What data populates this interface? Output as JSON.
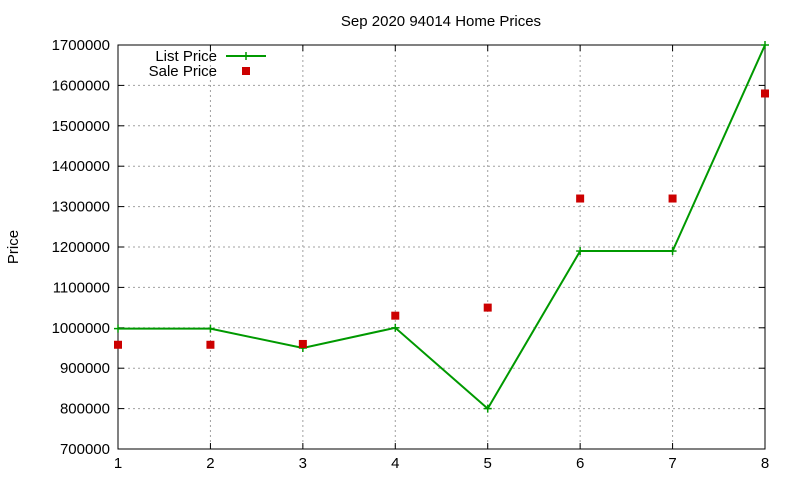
{
  "chart_data": {
    "type": "line",
    "title": "Sep 2020 94014 Home Prices",
    "xlabel": "",
    "ylabel": "Price",
    "x": [
      1,
      2,
      3,
      4,
      5,
      6,
      7,
      8
    ],
    "xlim": [
      1,
      8
    ],
    "ylim": [
      700000,
      1700000
    ],
    "xticks": [
      "1",
      "2",
      "3",
      "4",
      "5",
      "6",
      "7",
      "8"
    ],
    "yticks": [
      "700000",
      "800000",
      "900000",
      "1000000",
      "1100000",
      "1200000",
      "1300000",
      "1400000",
      "1500000",
      "1600000",
      "1700000"
    ],
    "grid": true,
    "legend_position": "top-left",
    "series": [
      {
        "name": "List Price",
        "style": "line-with-plus-markers",
        "color": "#009900",
        "values": [
          998000,
          998000,
          950000,
          1000000,
          800000,
          1190000,
          1190000,
          1700000
        ]
      },
      {
        "name": "Sale Price",
        "style": "square-markers",
        "color": "#cc0000",
        "values": [
          958000,
          958000,
          960000,
          1030000,
          1050000,
          1320000,
          1320000,
          1580000
        ]
      }
    ]
  }
}
